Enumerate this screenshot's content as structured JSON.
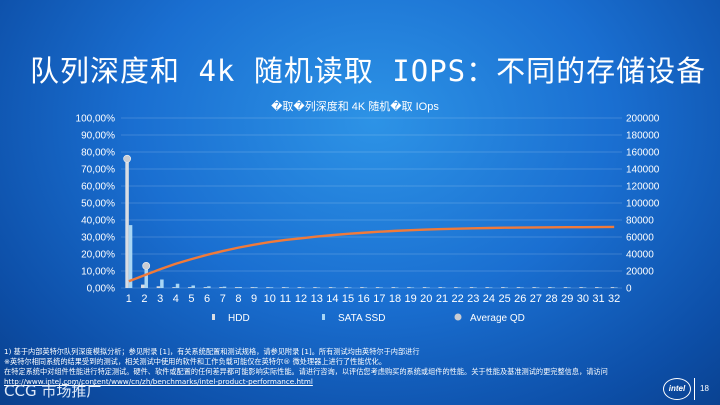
{
  "slide": {
    "title": "队列深度和 4k 随机读取 IOPS：不同的存储设备",
    "footnote_lines": [
      "1) 基于内部英特尔队列深度模拟分析；参见附录 [1]，有关系统配置和测试规格，请参见附录 [1]。所有测试均由英特尔于内部进行",
      "※英特尔相同系统的结果受到的测试，相关测试中使用的软件和工作负载可能仅在英特尔® 微处理器上进行了性能优化。",
      "在特定系统中对组件性能进行特定测试。硬件、软件或配置的任何差异都可能影响实际性能。请进行咨询，以评估您考虑购买的系统或组件的性能。关于性能及基准测试的更完整信息，请访问",
      "http://www.intel.com/content/www/cn/zh/benchmarks/intel-product-performance.html"
    ],
    "footer_left": "CCG 市场推广",
    "page_number": "18",
    "logo_text": "intel"
  },
  "chart_data": {
    "type": "bar",
    "title": "�取�列深度和 4K 随机�取 IOps",
    "categories": [
      "1",
      "2",
      "3",
      "4",
      "5",
      "6",
      "7",
      "8",
      "9",
      "10",
      "11",
      "12",
      "13",
      "14",
      "15",
      "16",
      "17",
      "18",
      "19",
      "20",
      "21",
      "22",
      "23",
      "24",
      "25",
      "26",
      "27",
      "28",
      "29",
      "30",
      "31",
      "32"
    ],
    "left_axis": {
      "ticks": [
        "100,00%",
        "90,00%",
        "80,00%",
        "70,00%",
        "60,00%",
        "50,00%",
        "40,00%",
        "30,00%",
        "20,00%",
        "10,00%",
        "0,00%"
      ],
      "range": [
        0,
        100
      ]
    },
    "right_axis": {
      "ticks": [
        "200000",
        "180000",
        "160000",
        "140000",
        "120000",
        "100000",
        "80000",
        "60000",
        "40000",
        "20000",
        "0"
      ],
      "range": [
        0,
        200000
      ]
    },
    "series": [
      {
        "name": "HDD",
        "kind": "bar",
        "axis": "left",
        "color": "#d9dde3",
        "values": [
          76,
          2,
          1,
          0.5,
          0.5,
          0.5,
          0.5,
          0.5,
          0.5,
          0.5,
          0.5,
          0.5,
          0.5,
          0.5,
          0.5,
          0.5,
          0.5,
          0.5,
          0.5,
          0.5,
          0.5,
          0.5,
          0.5,
          0.5,
          0.5,
          0.5,
          0.5,
          0.5,
          0.5,
          0.5,
          0.5,
          0.5
        ]
      },
      {
        "name": "SATA SSD",
        "kind": "bar",
        "axis": "left",
        "color": "#a8d6f5",
        "values": [
          37,
          13,
          5,
          2.5,
          1.5,
          1,
          0.8,
          0.6,
          0.5,
          0.4,
          0.4,
          0.3,
          0.3,
          0.3,
          0.3,
          0.3,
          0.3,
          0.3,
          0.3,
          0.3,
          0.3,
          0.3,
          0.3,
          0.3,
          0.3,
          0.3,
          0.3,
          0.3,
          0.3,
          0.3,
          0.3,
          0.3
        ]
      },
      {
        "name": "Average QD",
        "kind": "line",
        "axis": "right",
        "color": "#f07a3a",
        "values": [
          8000,
          15000,
          22000,
          28500,
          34000,
          39000,
          43500,
          47500,
          51000,
          54000,
          56500,
          58500,
          60500,
          62200,
          63700,
          65000,
          66200,
          67200,
          68000,
          68700,
          69300,
          69800,
          70200,
          70600,
          70900,
          71100,
          71300,
          71400,
          71500,
          71600,
          71700,
          71800
        ]
      }
    ],
    "markers": [
      {
        "series": "HDD",
        "x": 1,
        "y": 76
      },
      {
        "series": "SATA SSD",
        "x": 2,
        "y": 13
      }
    ],
    "legend": {
      "placement": "bottom",
      "items": [
        "HDD",
        "SATA SSD",
        "Average QD"
      ]
    },
    "grid": true
  }
}
